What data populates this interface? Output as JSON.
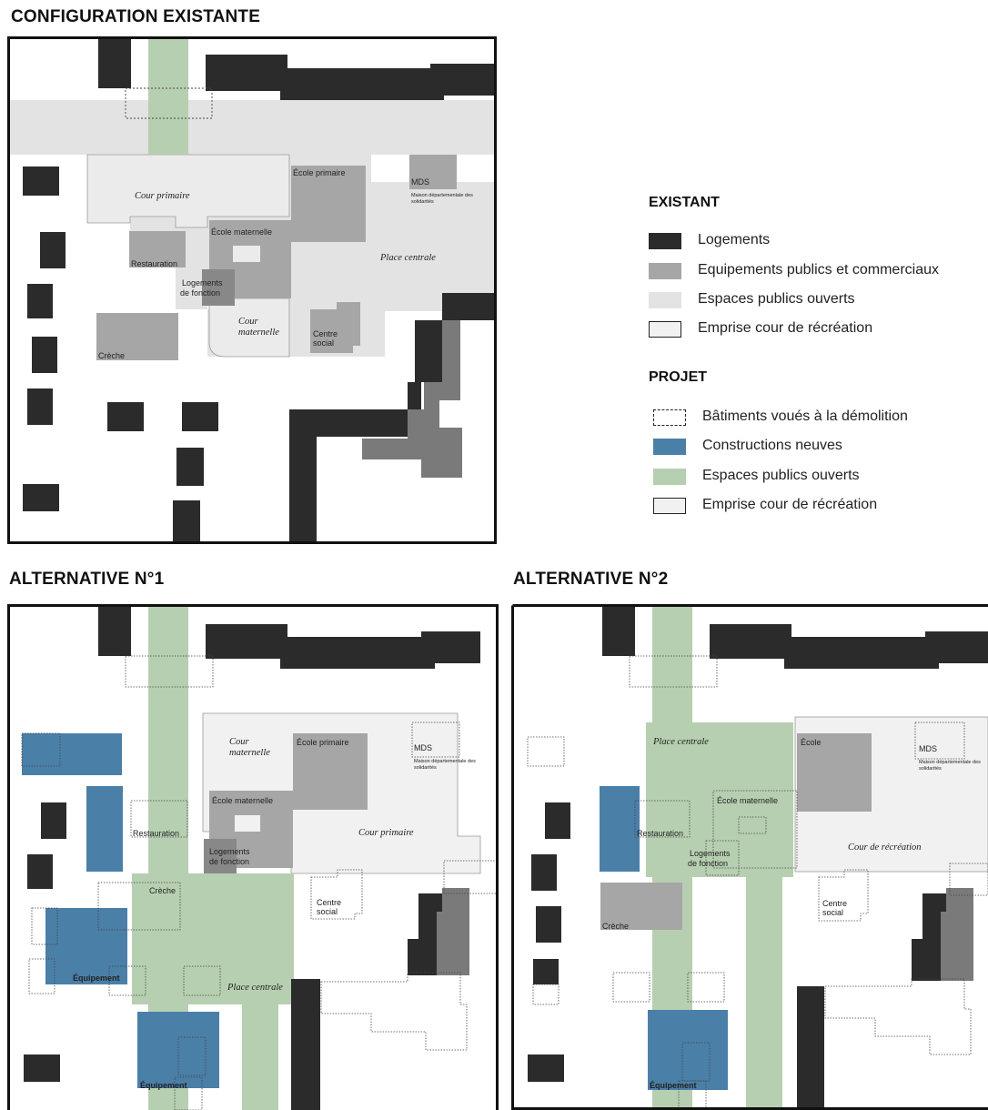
{
  "headings": {
    "existing": "CONFIGURATION EXISTANTE",
    "alt1": "ALTERNATIVE N°1",
    "alt2": "ALTERNATIVE N°2"
  },
  "colors": {
    "housing": "#2b2b2b",
    "public_equipment": "#a6a6a6",
    "public_equipment_dark": "#7a7a7a",
    "open_space_existing": "#e3e3e3",
    "new_construction": "#4a7fa8",
    "open_space_project": "#b7cfb1",
    "schoolyard": "#f1f1f1"
  },
  "legend": {
    "existing_title": "EXISTANT",
    "existing_items": [
      {
        "label": "Logements",
        "swatch": "housing"
      },
      {
        "label": "Equipements publics et commerciaux",
        "swatch": "public_equipment"
      },
      {
        "label": "Espaces publics ouverts",
        "swatch": "open_space_existing"
      },
      {
        "label": "Emprise cour de récréation",
        "swatch": "schoolyard"
      }
    ],
    "project_title": "PROJET",
    "project_items": [
      {
        "label": "Bâtiments voués à la démolition",
        "swatch": "demolition"
      },
      {
        "label": "Constructions neuves",
        "swatch": "new_construction"
      },
      {
        "label": "Espaces publics ouverts",
        "swatch": "open_space_project"
      },
      {
        "label": "Emprise cour de récréation",
        "swatch": "schoolyard"
      }
    ]
  },
  "existing_labels": {
    "cour_primaire": "Cour primaire",
    "ecole_primaire": "École primaire",
    "mds": "MDS",
    "mds_desc_1": "Maison départementale des",
    "mds_desc_2": "solidarités",
    "ecole_maternelle": "École maternelle",
    "place_centrale": "Place centrale",
    "restauration": "Restauration",
    "logements_1": "Logements",
    "logements_2": "de fonction",
    "cour_maternelle_1": "Cour",
    "cour_maternelle_2": "maternelle",
    "centre_social_1": "Centre",
    "centre_social_2": "social",
    "creche": "Crèche"
  },
  "alt1_labels": {
    "cour_maternelle_1": "Cour",
    "cour_maternelle_2": "maternelle",
    "ecole_primaire": "École primaire",
    "mds": "MDS",
    "mds_desc_1": "Maison départementale des",
    "mds_desc_2": "solidarités",
    "ecole_maternelle": "École maternelle",
    "restauration": "Restauration",
    "cour_primaire": "Cour primaire",
    "logements_1": "Logements",
    "logements_2": "de fonction",
    "creche": "Crèche",
    "centre_social_1": "Centre",
    "centre_social_2": "social",
    "equipement_1": "Équipement",
    "place_centrale": "Place centrale",
    "equipement_2": "Équipement"
  },
  "alt2_labels": {
    "place_centrale": "Place centrale",
    "ecole": "École",
    "mds": "MDS",
    "mds_desc_1": "Maison départementale des",
    "mds_desc_2": "solidarités",
    "ecole_maternelle": "École maternelle",
    "restauration": "Restauration",
    "logements_1": "Logements",
    "logements_2": "de fonction",
    "cour_recreation": "Cour de récréation",
    "centre_social_1": "Centre",
    "centre_social_2": "social",
    "creche": "Crèche",
    "equipement": "Équipement"
  }
}
